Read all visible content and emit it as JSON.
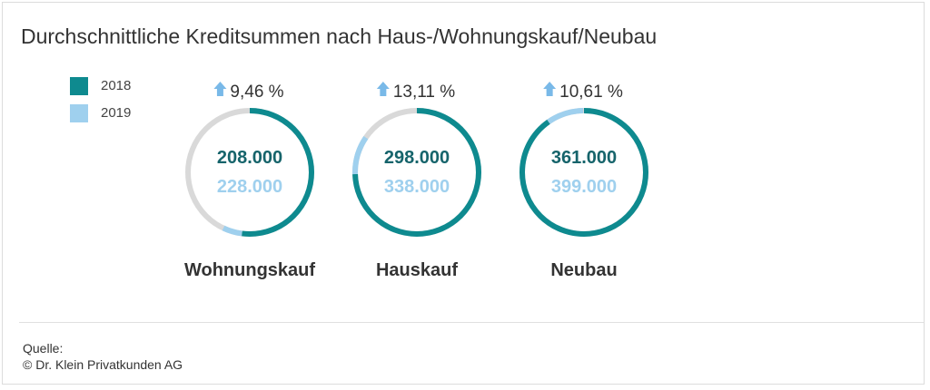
{
  "title": "Durchschnittliche Kreditsummen nach Haus-/Wohnungskauf/Neubau",
  "legend": [
    {
      "label": "2018",
      "color": "#0e8a8f"
    },
    {
      "label": "2019",
      "color": "#9fd0ee"
    }
  ],
  "source": {
    "line1": "Quelle:",
    "line2": "© Dr. Klein Privatkunden AG"
  },
  "colors": {
    "value_2018_text": "#16646b",
    "track": "#d9d9d9",
    "arrow": "#79b9e8"
  },
  "chart_data": {
    "type": "donut",
    "title": "Durchschnittliche Kreditsummen nach Haus-/Wohnungskauf/Neubau",
    "series_names": [
      "2018",
      "2019"
    ],
    "items": [
      {
        "category": "Wohnungskauf",
        "value_2018": 208000,
        "value_2019": 228000,
        "label_2018": "208.000",
        "label_2019": "228.000",
        "change": "9,46 %"
      },
      {
        "category": "Hauskauf",
        "value_2018": 298000,
        "value_2019": 338000,
        "label_2018": "298.000",
        "label_2019": "338.000",
        "change": "13,11 %"
      },
      {
        "category": "Neubau",
        "value_2018": 361000,
        "value_2019": 399000,
        "label_2018": "361.000",
        "label_2019": "399.000",
        "change": "10,61 %"
      }
    ],
    "max": 400000
  }
}
